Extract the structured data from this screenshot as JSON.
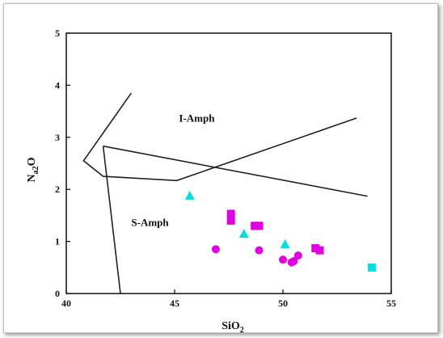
{
  "chart_data": {
    "type": "scatter",
    "title": "",
    "xlabel": {
      "base": "SiO",
      "sub": "2"
    },
    "ylabel": {
      "base": "N",
      "sub": "a2",
      "tail": "O"
    },
    "xlim": [
      40,
      55
    ],
    "ylim": [
      0,
      5
    ],
    "x_ticks": [
      {
        "value": 40,
        "label": "40"
      },
      {
        "value": 45,
        "label": "45"
      },
      {
        "value": 50,
        "label": "50"
      },
      {
        "value": 55,
        "label": "55"
      }
    ],
    "y_ticks": [
      {
        "value": 0,
        "label": "0"
      },
      {
        "value": 1,
        "label": "1"
      },
      {
        "value": 2,
        "label": "2"
      },
      {
        "value": 3,
        "label": "3"
      },
      {
        "value": 4,
        "label": "4"
      },
      {
        "value": 5,
        "label": "5"
      }
    ],
    "grid": false,
    "regions": [
      {
        "label": "I-Amph",
        "x": 45.2,
        "y": 3.3
      },
      {
        "label": "S-Amph",
        "x": 43.0,
        "y": 1.3
      }
    ],
    "boundary_lines": [
      {
        "points": [
          [
            43.0,
            3.85
          ],
          [
            40.8,
            2.55
          ],
          [
            41.7,
            2.25
          ],
          [
            45.1,
            2.17
          ],
          [
            53.4,
            3.37
          ]
        ]
      },
      {
        "points": [
          [
            41.7,
            2.83
          ],
          [
            53.9,
            1.87
          ]
        ]
      },
      {
        "points": [
          [
            41.7,
            2.83
          ],
          [
            42.5,
            0.0
          ]
        ]
      }
    ],
    "series": [
      {
        "marker": "triangle",
        "color": "#00e0e0",
        "points": [
          [
            45.7,
            1.88
          ],
          [
            48.2,
            1.15
          ],
          [
            50.1,
            0.95
          ]
        ]
      },
      {
        "marker": "square",
        "color": "#00e0e0",
        "points": [
          [
            54.1,
            0.5
          ]
        ]
      },
      {
        "marker": "square",
        "color": "#e000e0",
        "points": [
          [
            47.6,
            1.53
          ],
          [
            47.6,
            1.4
          ],
          [
            48.7,
            1.3
          ],
          [
            48.9,
            1.3
          ],
          [
            51.5,
            0.87
          ],
          [
            51.7,
            0.83
          ]
        ]
      },
      {
        "marker": "circle",
        "color": "#e000e0",
        "points": [
          [
            46.9,
            0.85
          ],
          [
            48.9,
            0.83
          ],
          [
            50.0,
            0.65
          ],
          [
            50.4,
            0.6
          ],
          [
            50.5,
            0.62
          ],
          [
            50.7,
            0.73
          ]
        ]
      }
    ]
  }
}
